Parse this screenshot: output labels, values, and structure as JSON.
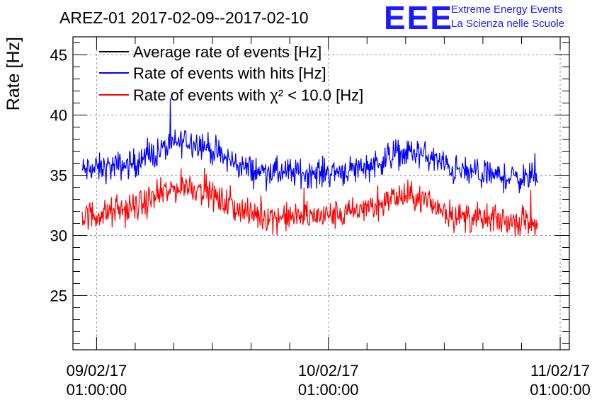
{
  "chart_data": {
    "type": "line",
    "title": "AREZ-01 2017-02-09--2017-02-10",
    "logo": {
      "mark": "EEE",
      "line1": "Extreme Energy Events",
      "line2": "La Scienza nelle Scuole"
    },
    "ylabel": "Rate [Hz]",
    "xlabel": "",
    "ylim": [
      20.5,
      46.5
    ],
    "y_ticks": [
      "25",
      "30",
      "35",
      "40",
      "45"
    ],
    "x_ticks": [
      {
        "date": "09/02/17",
        "time": "01:00:00"
      },
      {
        "date": "10/02/17",
        "time": "01:00:00"
      },
      {
        "date": "11/02/17",
        "time": "01:00:00"
      }
    ],
    "x_range": [
      "2017-02-08 22:33",
      "2017-02-11 01:57"
    ],
    "grid": true,
    "legend_position": "top-left",
    "series": [
      {
        "name": "Average rate of events [Hz]",
        "color": "#000000",
        "x": [],
        "values": []
      },
      {
        "name": "Rate of events with hits [Hz]",
        "color": "#0000ff",
        "x": [
          "2017-02-08 23:30",
          "2017-02-09 02:00",
          "2017-02-09 05:00",
          "2017-02-09 08:00",
          "2017-02-09 10:00",
          "2017-02-09 12:00",
          "2017-02-09 14:00",
          "2017-02-09 17:00",
          "2017-02-09 20:00",
          "2017-02-10 00:00",
          "2017-02-10 03:00",
          "2017-02-10 06:00",
          "2017-02-10 08:00",
          "2017-02-10 10:00",
          "2017-02-10 12:00",
          "2017-02-10 14:00",
          "2017-02-10 17:00",
          "2017-02-10 20:00",
          "2017-02-10 22:42"
        ],
        "values": [
          35.4,
          35.6,
          36.0,
          37.2,
          37.9,
          37.6,
          36.5,
          35.4,
          35.2,
          35.2,
          35.4,
          36.0,
          36.8,
          36.9,
          36.3,
          35.4,
          35.0,
          34.8,
          34.8
        ]
      },
      {
        "name": "Rate of events with χ² < 10.0 [Hz]",
        "color": "#ff0000",
        "x": [
          "2017-02-08 23:30",
          "2017-02-09 02:00",
          "2017-02-09 05:00",
          "2017-02-09 08:00",
          "2017-02-09 10:00",
          "2017-02-09 12:00",
          "2017-02-09 14:00",
          "2017-02-09 17:00",
          "2017-02-09 20:00",
          "2017-02-10 00:00",
          "2017-02-10 03:00",
          "2017-02-10 06:00",
          "2017-02-10 08:00",
          "2017-02-10 10:00",
          "2017-02-10 12:00",
          "2017-02-10 14:00",
          "2017-02-10 17:00",
          "2017-02-10 20:00",
          "2017-02-10 22:42"
        ],
        "values": [
          31.6,
          31.8,
          32.3,
          33.5,
          34.2,
          33.8,
          32.8,
          31.7,
          31.5,
          31.6,
          31.8,
          32.5,
          33.2,
          33.2,
          32.5,
          31.6,
          31.3,
          31.2,
          31.2
        ]
      }
    ]
  }
}
